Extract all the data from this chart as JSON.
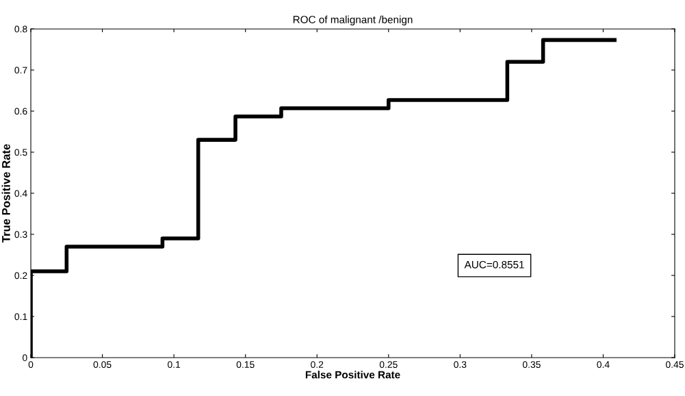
{
  "chart_data": {
    "type": "step",
    "title": "ROC of malignant /benign",
    "xlabel": "False Positive Rate",
    "ylabel": "True Positive Rate",
    "x": [
      0,
      0,
      0.025,
      0.092,
      0.117,
      0.143,
      0.175,
      0.25,
      0.333,
      0.358,
      0.408
    ],
    "series": [
      {
        "color": "#000000",
        "values": [
          0,
          0.21,
          0.27,
          0.29,
          0.53,
          0.587,
          0.607,
          0.627,
          0.72,
          0.773,
          0.773
        ]
      }
    ],
    "xlim": [
      0,
      0.45
    ],
    "xticks": [
      0,
      0.05,
      0.1,
      0.15,
      0.2,
      0.25,
      0.3,
      0.35,
      0.4,
      0.45
    ],
    "ylim": [
      0,
      0.8
    ],
    "yticks": [
      0,
      0.1,
      0.2,
      0.3,
      0.4,
      0.5,
      0.6,
      0.7,
      0.8
    ],
    "grid": false,
    "annotations": [
      "AUC=0.8551"
    ]
  }
}
